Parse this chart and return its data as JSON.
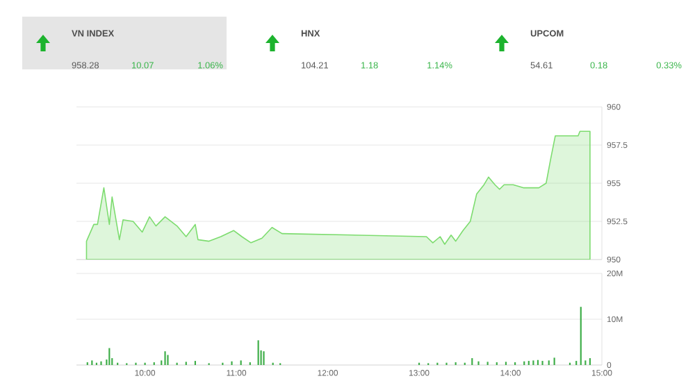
{
  "chart_data": [
    {
      "type": "other",
      "categories": [
        "VN INDEX",
        "HNX",
        "UPCOM"
      ],
      "annotations": [
        "958.28",
        "10.07",
        "1.06%",
        "104.21",
        "1.18",
        "1.14%",
        "54.61",
        "0.18",
        "0.33%"
      ]
    },
    {
      "type": "area",
      "color": "#7ddc6f",
      "xlim": [
        9.25,
        15
      ],
      "ylim": [
        950,
        960
      ],
      "yticks": [
        950,
        952.5,
        955,
        957.5,
        960
      ],
      "grid": "y",
      "tick_labels": "y",
      "x": [
        9.36,
        9.44,
        9.48,
        9.55,
        9.61,
        9.64,
        9.72,
        9.76,
        9.87,
        9.97,
        10.05,
        10.12,
        10.22,
        10.35,
        10.45,
        10.55,
        10.58,
        10.7,
        10.83,
        10.97,
        11.06,
        11.16,
        11.28,
        11.39,
        11.5,
        13.08,
        13.15,
        13.23,
        13.28,
        13.35,
        13.4,
        13.48,
        13.56,
        13.63,
        13.71,
        13.76,
        13.83,
        13.88,
        13.93,
        14.03,
        14.14,
        14.31,
        14.39,
        14.44,
        14.49,
        14.74,
        14.76,
        14.87
      ],
      "values": [
        951.2,
        952.3,
        952.3,
        954.7,
        952.3,
        954.1,
        951.3,
        952.6,
        952.5,
        951.8,
        952.8,
        952.2,
        952.8,
        952.2,
        951.5,
        952.3,
        951.3,
        951.2,
        951.5,
        951.9,
        951.5,
        951.1,
        951.4,
        952.1,
        951.7,
        951.5,
        951.1,
        951.5,
        951.0,
        951.6,
        951.2,
        951.9,
        952.5,
        954.3,
        954.9,
        955.4,
        954.9,
        954.6,
        954.9,
        954.9,
        954.7,
        954.7,
        955.0,
        956.6,
        958.1,
        958.1,
        958.4,
        958.4
      ]
    },
    {
      "type": "bar",
      "color": "#3fae49",
      "xlim": [
        9.25,
        15
      ],
      "ylim": [
        0,
        20
      ],
      "grid": "y",
      "xticks": [
        {
          "value": 10,
          "label": "10:00"
        },
        {
          "value": 11,
          "label": "11:00"
        },
        {
          "value": 12,
          "label": "12:00"
        },
        {
          "value": 13,
          "label": "13:00"
        },
        {
          "value": 14,
          "label": "14:00"
        },
        {
          "value": 15,
          "label": "15:00"
        }
      ],
      "yticks": [
        0,
        {
          "value": 10,
          "label": "10M"
        },
        {
          "value": 20,
          "label": "20M"
        }
      ],
      "x": [
        9.37,
        9.42,
        9.47,
        9.52,
        9.58,
        9.61,
        9.64,
        9.7,
        9.8,
        9.9,
        10.0,
        10.1,
        10.18,
        10.22,
        10.25,
        10.35,
        10.45,
        10.55,
        10.7,
        10.85,
        10.95,
        11.05,
        11.15,
        11.24,
        11.27,
        11.3,
        11.4,
        11.48,
        13.0,
        13.1,
        13.2,
        13.3,
        13.4,
        13.5,
        13.58,
        13.65,
        13.75,
        13.85,
        13.95,
        14.05,
        14.15,
        14.2,
        14.25,
        14.3,
        14.35,
        14.42,
        14.48,
        14.65,
        14.72,
        14.77,
        14.82,
        14.87
      ],
      "values": [
        0.6,
        1.0,
        0.5,
        0.8,
        1.2,
        3.7,
        1.5,
        0.5,
        0.4,
        0.5,
        0.5,
        0.6,
        1.0,
        3.0,
        2.2,
        0.5,
        0.7,
        0.9,
        0.4,
        0.5,
        0.8,
        1.0,
        0.6,
        5.4,
        3.2,
        3.0,
        0.5,
        0.4,
        0.5,
        0.4,
        0.5,
        0.5,
        0.6,
        0.5,
        1.5,
        0.8,
        0.7,
        0.6,
        0.7,
        0.6,
        0.8,
        0.9,
        1.0,
        1.1,
        0.9,
        1.0,
        1.6,
        0.5,
        0.9,
        12.7,
        1.0,
        1.5
      ]
    }
  ]
}
